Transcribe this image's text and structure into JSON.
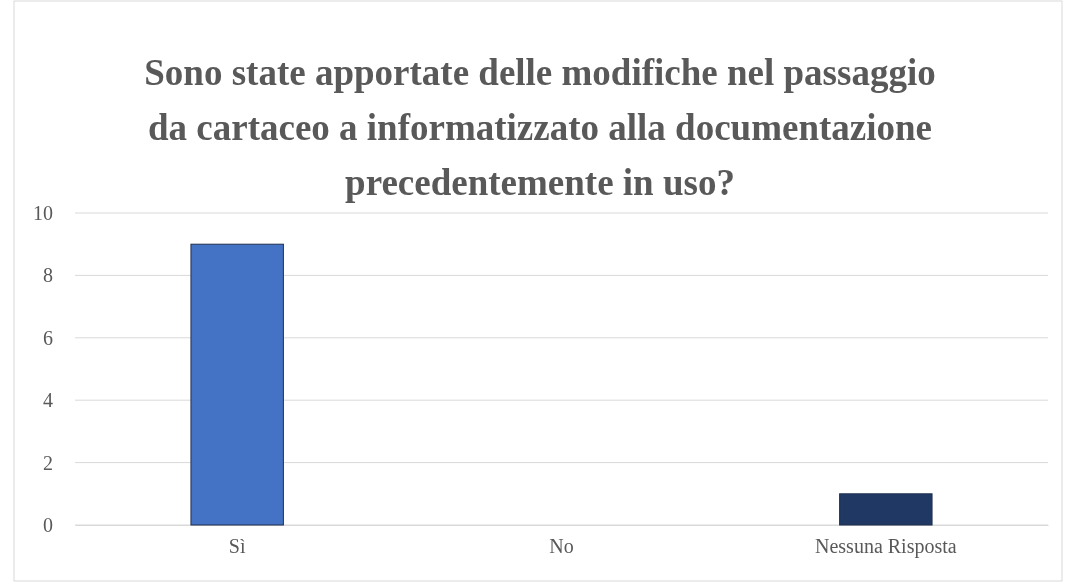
{
  "chart_data": {
    "type": "bar",
    "title": "Sono state apportate delle modifiche nel passaggio da cartaceo a informatizzato alla documentazione precedentemente in uso?",
    "categories": [
      "Sì",
      "No",
      "Nessuna Risposta"
    ],
    "values": [
      9,
      0,
      1
    ],
    "colors": [
      "#4472c4",
      "#4472c4",
      "#203864"
    ],
    "ylim": [
      0,
      10
    ],
    "yticks": [
      0,
      2,
      4,
      6,
      8,
      10
    ],
    "grid": "y"
  }
}
